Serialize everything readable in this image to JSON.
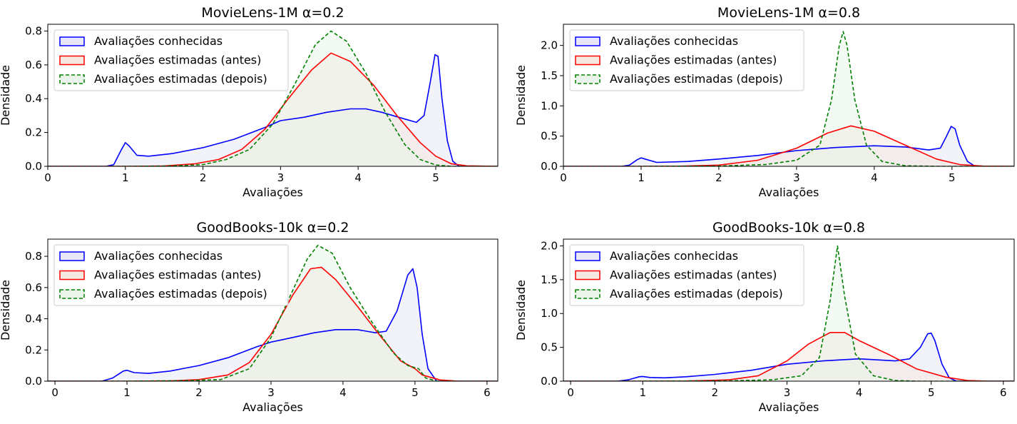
{
  "legend": {
    "known": "Avaliações conhecidas",
    "before": "Avaliações estimadas (antes)",
    "after": "Avaliações estimadas (depois)"
  },
  "colors": {
    "known": "#0000ff",
    "before": "#ff0000",
    "after": "#008000"
  },
  "chart_data": [
    {
      "type": "area",
      "title": "MovieLens-1M α=0.2",
      "xlabel": "Avaliações",
      "ylabel": "Densidade",
      "xlim": [
        0,
        5.8
      ],
      "ylim": [
        0,
        0.84
      ],
      "xticks": [
        "0",
        "1",
        "2",
        "3",
        "4",
        "5"
      ],
      "yticks": [
        "0.0",
        "0.2",
        "0.4",
        "0.6",
        "0.8"
      ],
      "legend_position": "top-left",
      "series": [
        {
          "name": "Avaliações conhecidas",
          "style": "solid",
          "points": [
            [
              0.75,
              0
            ],
            [
              0.85,
              0.01
            ],
            [
              0.95,
              0.1
            ],
            [
              1.0,
              0.14
            ],
            [
              1.05,
              0.12
            ],
            [
              1.15,
              0.065
            ],
            [
              1.3,
              0.06
            ],
            [
              1.6,
              0.075
            ],
            [
              2.0,
              0.11
            ],
            [
              2.4,
              0.16
            ],
            [
              2.8,
              0.23
            ],
            [
              3.0,
              0.27
            ],
            [
              3.3,
              0.29
            ],
            [
              3.6,
              0.32
            ],
            [
              3.9,
              0.34
            ],
            [
              4.1,
              0.34
            ],
            [
              4.3,
              0.32
            ],
            [
              4.6,
              0.28
            ],
            [
              4.75,
              0.26
            ],
            [
              4.85,
              0.3
            ],
            [
              4.93,
              0.5
            ],
            [
              4.99,
              0.66
            ],
            [
              5.03,
              0.65
            ],
            [
              5.08,
              0.4
            ],
            [
              5.15,
              0.15
            ],
            [
              5.22,
              0.03
            ],
            [
              5.3,
              0
            ]
          ]
        },
        {
          "name": "Avaliações estimadas (antes)",
          "style": "solid",
          "points": [
            [
              1.0,
              0
            ],
            [
              1.5,
              0.002
            ],
            [
              1.9,
              0.015
            ],
            [
              2.2,
              0.04
            ],
            [
              2.5,
              0.1
            ],
            [
              2.8,
              0.22
            ],
            [
              3.1,
              0.4
            ],
            [
              3.4,
              0.57
            ],
            [
              3.65,
              0.67
            ],
            [
              3.9,
              0.62
            ],
            [
              4.2,
              0.48
            ],
            [
              4.5,
              0.3
            ],
            [
              4.8,
              0.14
            ],
            [
              5.0,
              0.06
            ],
            [
              5.2,
              0.015
            ],
            [
              5.4,
              0.003
            ],
            [
              5.8,
              0
            ]
          ]
        },
        {
          "name": "Avaliações estimadas (depois)",
          "style": "dashed",
          "points": [
            [
              1.1,
              0
            ],
            [
              1.6,
              0.002
            ],
            [
              2.0,
              0.01
            ],
            [
              2.3,
              0.04
            ],
            [
              2.6,
              0.1
            ],
            [
              2.9,
              0.25
            ],
            [
              3.2,
              0.5
            ],
            [
              3.45,
              0.72
            ],
            [
              3.65,
              0.8
            ],
            [
              3.85,
              0.74
            ],
            [
              4.1,
              0.55
            ],
            [
              4.35,
              0.32
            ],
            [
              4.6,
              0.13
            ],
            [
              4.8,
              0.04
            ],
            [
              5.0,
              0.008
            ],
            [
              5.2,
              0
            ]
          ]
        }
      ]
    },
    {
      "type": "area",
      "title": "MovieLens-1M α=0.8",
      "xlabel": "Avaliações",
      "ylabel": "Densidade",
      "xlim": [
        0,
        5.8
      ],
      "ylim": [
        0,
        2.35
      ],
      "xticks": [
        "0",
        "1",
        "2",
        "3",
        "4",
        "5"
      ],
      "yticks": [
        "0.0",
        "0.5",
        "1.0",
        "1.5",
        "2.0"
      ],
      "legend_position": "top-left",
      "series": [
        {
          "name": "Avaliações conhecidas",
          "style": "solid",
          "points": [
            [
              0.75,
              0
            ],
            [
              0.85,
              0.02
            ],
            [
              0.95,
              0.11
            ],
            [
              1.0,
              0.14
            ],
            [
              1.05,
              0.12
            ],
            [
              1.2,
              0.065
            ],
            [
              1.6,
              0.08
            ],
            [
              2.0,
              0.12
            ],
            [
              2.5,
              0.18
            ],
            [
              3.0,
              0.26
            ],
            [
              3.5,
              0.31
            ],
            [
              4.0,
              0.34
            ],
            [
              4.4,
              0.32
            ],
            [
              4.7,
              0.27
            ],
            [
              4.85,
              0.3
            ],
            [
              4.93,
              0.5
            ],
            [
              4.99,
              0.66
            ],
            [
              5.04,
              0.62
            ],
            [
              5.1,
              0.35
            ],
            [
              5.2,
              0.08
            ],
            [
              5.3,
              0
            ]
          ]
        },
        {
          "name": "Avaliações estimadas (antes)",
          "style": "solid",
          "points": [
            [
              1.0,
              0
            ],
            [
              1.5,
              0.002
            ],
            [
              2.0,
              0.02
            ],
            [
              2.5,
              0.1
            ],
            [
              3.0,
              0.3
            ],
            [
              3.4,
              0.55
            ],
            [
              3.7,
              0.67
            ],
            [
              4.0,
              0.58
            ],
            [
              4.4,
              0.35
            ],
            [
              4.8,
              0.12
            ],
            [
              5.1,
              0.03
            ],
            [
              5.4,
              0.004
            ],
            [
              5.8,
              0
            ]
          ]
        },
        {
          "name": "Avaliações estimadas (depois)",
          "style": "dashed",
          "points": [
            [
              1.1,
              0
            ],
            [
              2.0,
              0.005
            ],
            [
              2.6,
              0.03
            ],
            [
              3.0,
              0.1
            ],
            [
              3.3,
              0.35
            ],
            [
              3.45,
              1.1
            ],
            [
              3.55,
              2.0
            ],
            [
              3.6,
              2.23
            ],
            [
              3.65,
              2.0
            ],
            [
              3.75,
              1.1
            ],
            [
              3.9,
              0.35
            ],
            [
              4.1,
              0.08
            ],
            [
              4.4,
              0.01
            ],
            [
              4.8,
              0
            ]
          ]
        }
      ]
    },
    {
      "type": "area",
      "title": "GoodBooks-10k α=0.2",
      "xlabel": "Avaliações",
      "ylabel": "Densidade",
      "xlim": [
        -0.1,
        6.15
      ],
      "ylim": [
        0,
        0.91
      ],
      "xticks": [
        "0",
        "1",
        "2",
        "3",
        "4",
        "5",
        "6"
      ],
      "yticks": [
        "0.0",
        "0.2",
        "0.4",
        "0.6",
        "0.8"
      ],
      "legend_position": "top-left",
      "series": [
        {
          "name": "Avaliações conhecidas",
          "style": "solid",
          "points": [
            [
              0.65,
              0
            ],
            [
              0.8,
              0.02
            ],
            [
              0.95,
              0.065
            ],
            [
              1.0,
              0.07
            ],
            [
              1.1,
              0.055
            ],
            [
              1.3,
              0.05
            ],
            [
              1.6,
              0.065
            ],
            [
              2.0,
              0.1
            ],
            [
              2.4,
              0.15
            ],
            [
              2.8,
              0.22
            ],
            [
              3.0,
              0.25
            ],
            [
              3.3,
              0.28
            ],
            [
              3.6,
              0.31
            ],
            [
              3.9,
              0.33
            ],
            [
              4.2,
              0.33
            ],
            [
              4.45,
              0.31
            ],
            [
              4.6,
              0.32
            ],
            [
              4.75,
              0.45
            ],
            [
              4.9,
              0.68
            ],
            [
              4.97,
              0.72
            ],
            [
              5.03,
              0.6
            ],
            [
              5.1,
              0.3
            ],
            [
              5.18,
              0.08
            ],
            [
              5.3,
              0
            ]
          ]
        },
        {
          "name": "Avaliações estimadas (antes)",
          "style": "solid",
          "points": [
            [
              1.0,
              0
            ],
            [
              1.6,
              0.002
            ],
            [
              2.0,
              0.01
            ],
            [
              2.4,
              0.04
            ],
            [
              2.7,
              0.12
            ],
            [
              3.0,
              0.3
            ],
            [
              3.3,
              0.55
            ],
            [
              3.55,
              0.72
            ],
            [
              3.7,
              0.73
            ],
            [
              3.9,
              0.65
            ],
            [
              4.2,
              0.48
            ],
            [
              4.5,
              0.3
            ],
            [
              4.8,
              0.13
            ],
            [
              5.0,
              0.08
            ],
            [
              5.1,
              0.04
            ],
            [
              5.35,
              0.008
            ],
            [
              5.6,
              0
            ]
          ]
        },
        {
          "name": "Avaliações estimadas (depois)",
          "style": "dashed",
          "points": [
            [
              1.0,
              0
            ],
            [
              1.8,
              0.003
            ],
            [
              2.3,
              0.01
            ],
            [
              2.7,
              0.08
            ],
            [
              3.0,
              0.28
            ],
            [
              3.3,
              0.58
            ],
            [
              3.5,
              0.78
            ],
            [
              3.65,
              0.87
            ],
            [
              3.85,
              0.82
            ],
            [
              4.1,
              0.6
            ],
            [
              4.4,
              0.38
            ],
            [
              4.7,
              0.18
            ],
            [
              4.9,
              0.1
            ],
            [
              5.05,
              0.08
            ],
            [
              5.15,
              0.02
            ],
            [
              5.3,
              0
            ]
          ]
        }
      ]
    },
    {
      "type": "area",
      "title": "GoodBooks-10k α=0.8",
      "xlabel": "Avaliações",
      "ylabel": "Densidade",
      "xlim": [
        -0.1,
        6.15
      ],
      "ylim": [
        0,
        2.1
      ],
      "xticks": [
        "0",
        "1",
        "2",
        "3",
        "4",
        "5",
        "6"
      ],
      "yticks": [
        "0.0",
        "0.5",
        "1.0",
        "1.5",
        "2.0"
      ],
      "legend_position": "top-left",
      "series": [
        {
          "name": "Avaliações conhecidas",
          "style": "solid",
          "points": [
            [
              0.65,
              0
            ],
            [
              0.8,
              0.02
            ],
            [
              0.95,
              0.065
            ],
            [
              1.0,
              0.07
            ],
            [
              1.1,
              0.055
            ],
            [
              1.3,
              0.05
            ],
            [
              1.6,
              0.065
            ],
            [
              2.0,
              0.1
            ],
            [
              2.5,
              0.16
            ],
            [
              3.0,
              0.25
            ],
            [
              3.5,
              0.3
            ],
            [
              4.0,
              0.33
            ],
            [
              4.5,
              0.3
            ],
            [
              4.7,
              0.33
            ],
            [
              4.85,
              0.5
            ],
            [
              4.95,
              0.7
            ],
            [
              5.0,
              0.71
            ],
            [
              5.05,
              0.6
            ],
            [
              5.15,
              0.25
            ],
            [
              5.25,
              0.05
            ],
            [
              5.35,
              0
            ]
          ]
        },
        {
          "name": "Avaliações estimadas (antes)",
          "style": "solid",
          "points": [
            [
              1.0,
              0
            ],
            [
              1.6,
              0.002
            ],
            [
              2.2,
              0.02
            ],
            [
              2.6,
              0.08
            ],
            [
              3.0,
              0.3
            ],
            [
              3.3,
              0.55
            ],
            [
              3.6,
              0.72
            ],
            [
              3.8,
              0.72
            ],
            [
              4.0,
              0.6
            ],
            [
              4.4,
              0.4
            ],
            [
              4.8,
              0.18
            ],
            [
              5.2,
              0.06
            ],
            [
              5.5,
              0.01
            ],
            [
              5.8,
              0
            ]
          ]
        },
        {
          "name": "Avaliações estimadas (depois)",
          "style": "dashed",
          "points": [
            [
              1.0,
              0
            ],
            [
              2.2,
              0.005
            ],
            [
              2.8,
              0.02
            ],
            [
              3.2,
              0.08
            ],
            [
              3.45,
              0.35
            ],
            [
              3.6,
              1.2
            ],
            [
              3.7,
              2.0
            ],
            [
              3.8,
              1.25
            ],
            [
              3.95,
              0.4
            ],
            [
              4.2,
              0.08
            ],
            [
              4.5,
              0.01
            ],
            [
              4.8,
              0
            ]
          ]
        }
      ]
    }
  ]
}
